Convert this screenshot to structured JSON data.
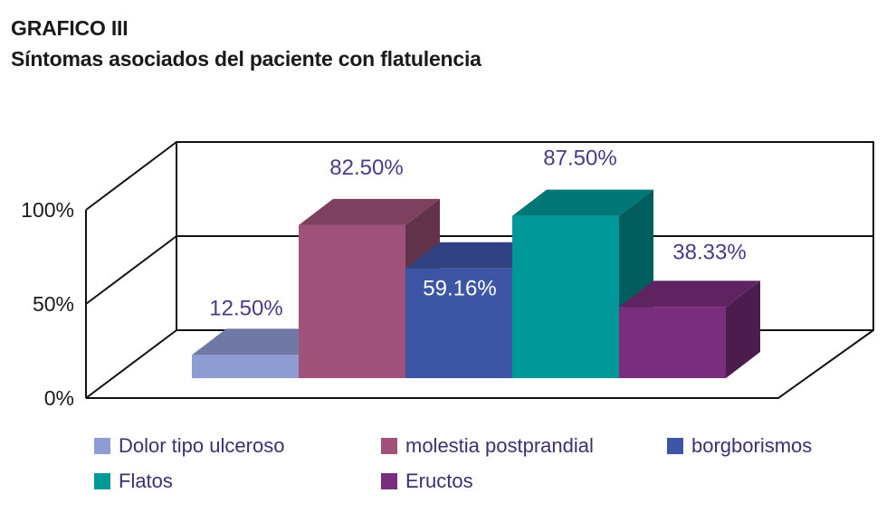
{
  "header": {
    "title": "GRAFICO  III",
    "subtitle": "Síntomas asociados del paciente con flatulencia"
  },
  "chart_data": {
    "type": "bar",
    "title": "GRAFICO  III",
    "subtitle": "Síntomas asociados del paciente con flatulencia",
    "categories": [
      "Dolor tipo ulceroso",
      "molestia postprandial",
      "borgborismos",
      "Flatos",
      "Eructos"
    ],
    "values": [
      12.5,
      82.5,
      59.16,
      87.5,
      38.33
    ],
    "value_labels": [
      "12.50%",
      "82.50%",
      "59.16%",
      "87.50%",
      "38.33%"
    ],
    "y_ticks": [
      {
        "value": 0,
        "label": "0%"
      },
      {
        "value": 50,
        "label": "50%"
      },
      {
        "value": 100,
        "label": "100%"
      }
    ],
    "ylim": [
      0,
      100
    ],
    "style": "3d",
    "grid": true,
    "legend_position": "bottom",
    "colors": [
      "#8f9bd3",
      "#a0527a",
      "#3d55a5",
      "#009899",
      "#7b2d7d"
    ],
    "label_color": "#4b3a8a",
    "inside_label_color": "#ffffff"
  }
}
